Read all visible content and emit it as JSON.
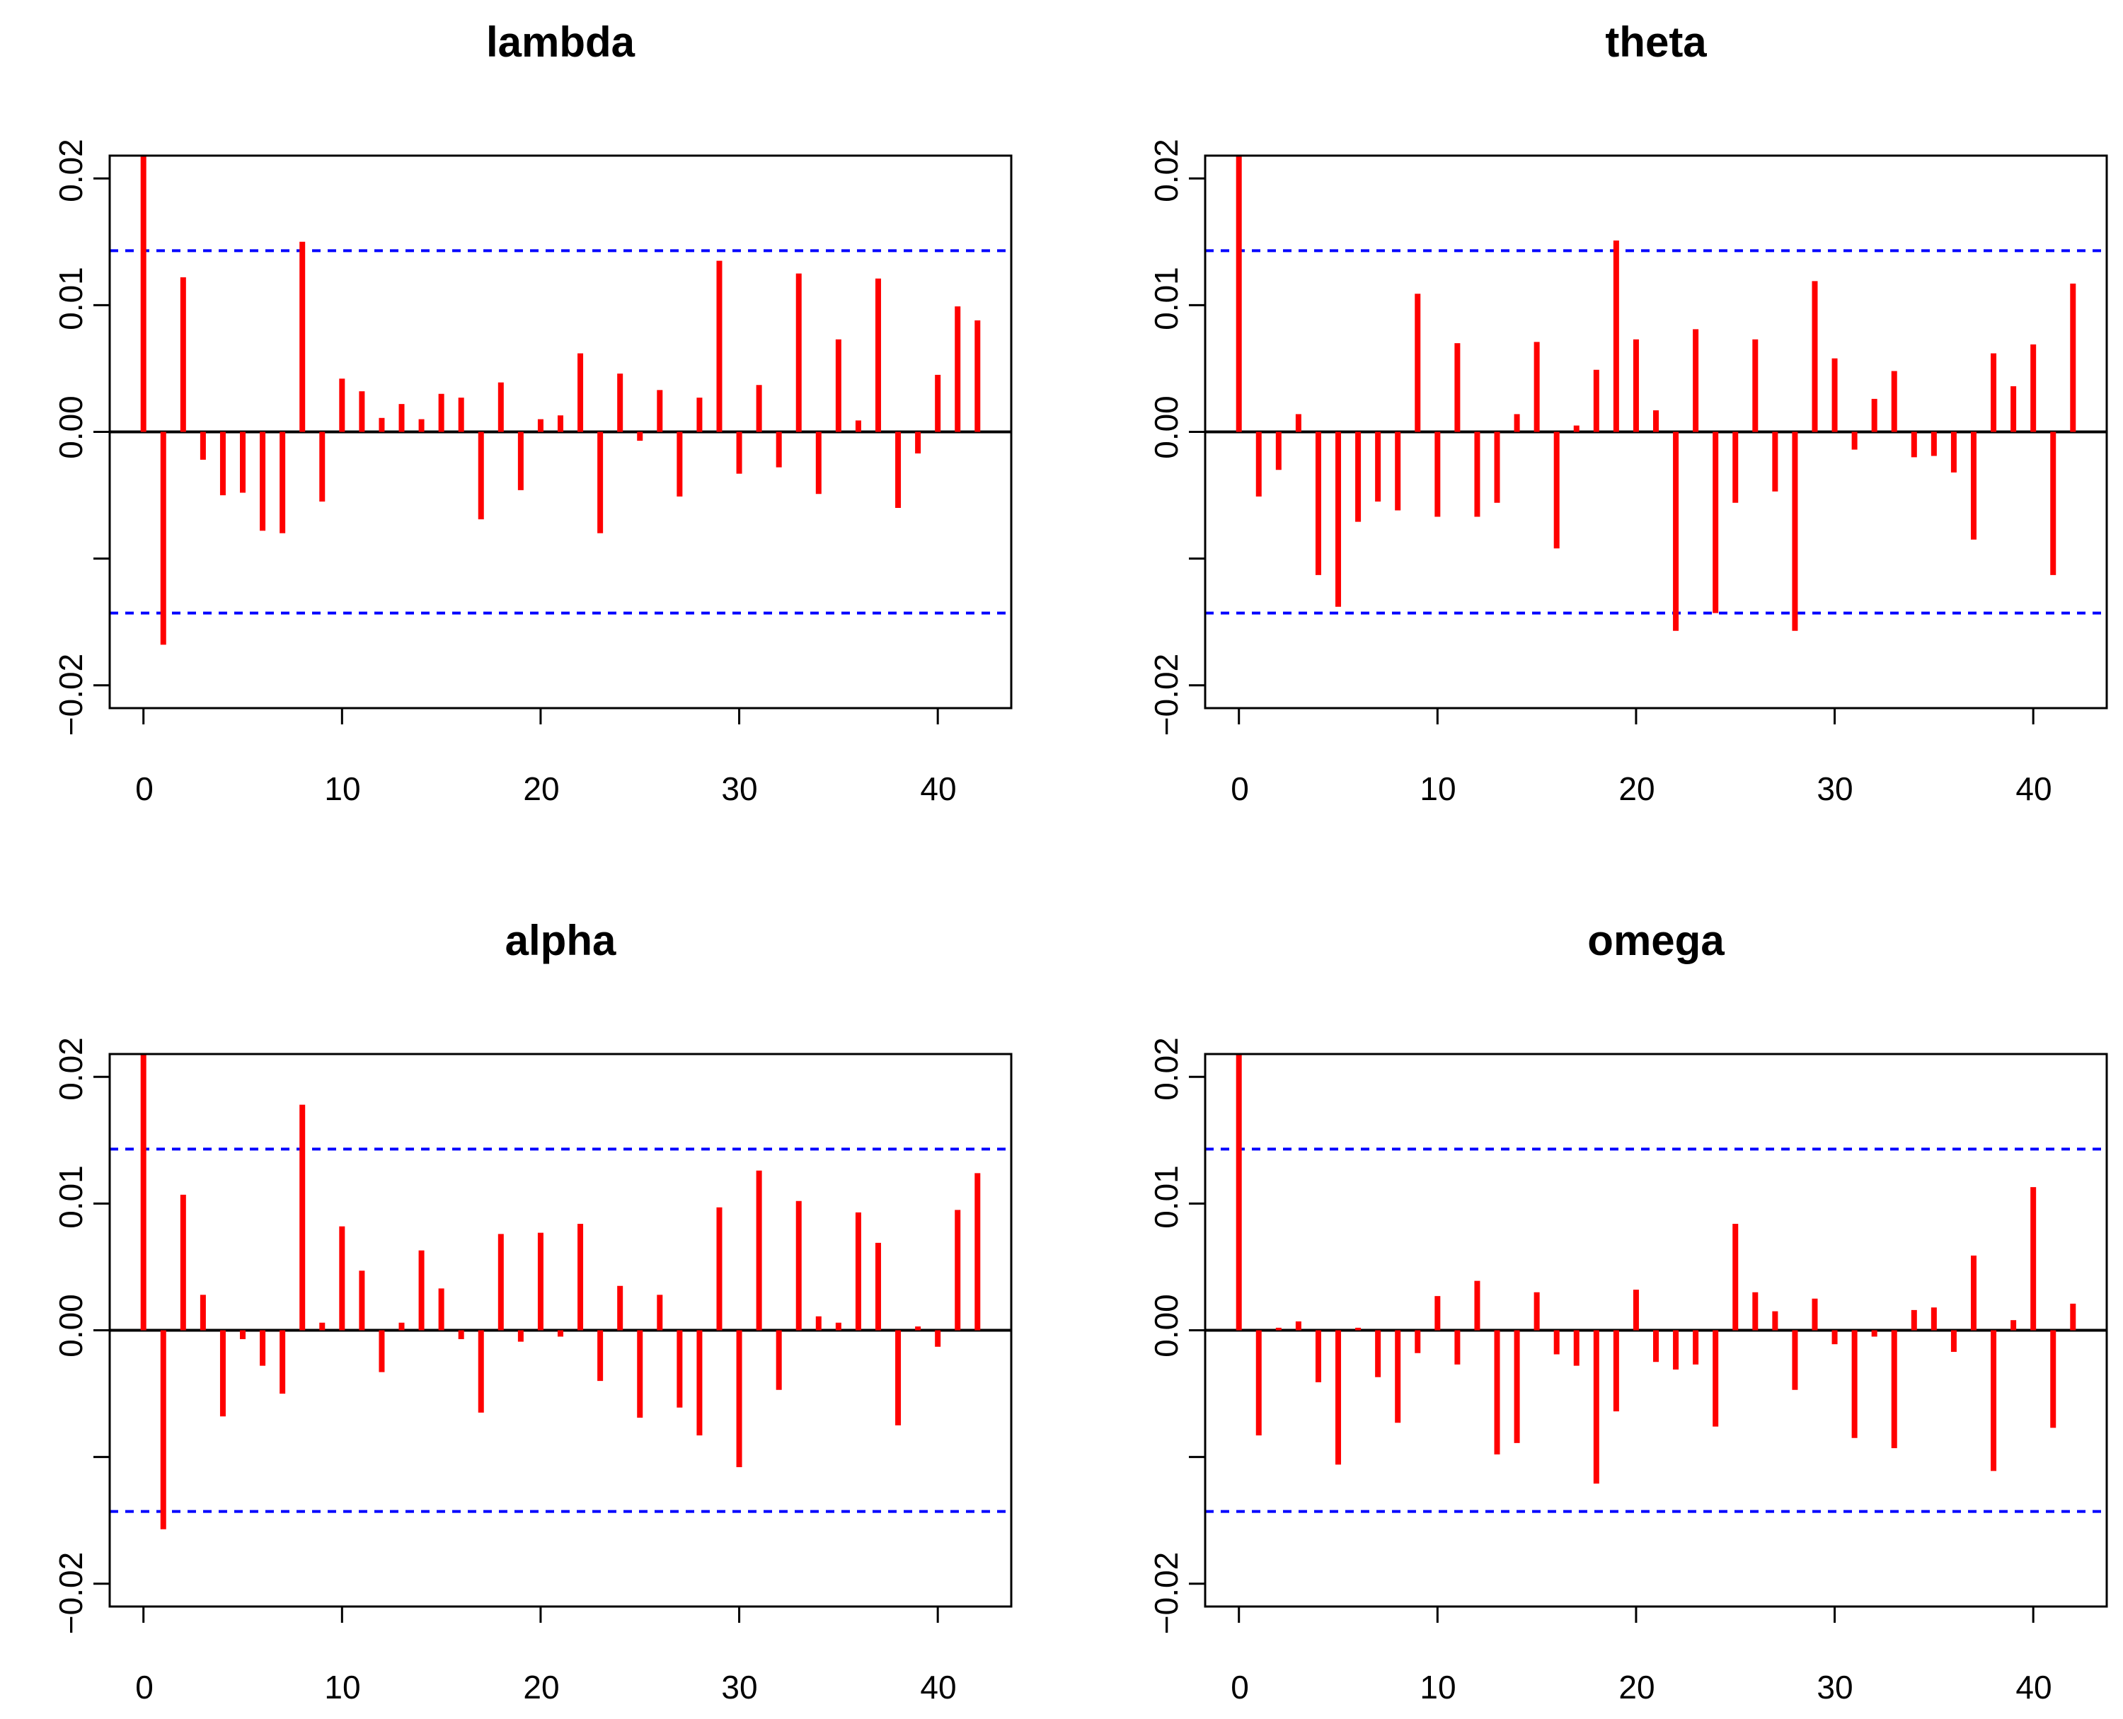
{
  "colors": {
    "spike": "#ff0000",
    "ci": "#0000ff",
    "axis": "#000000",
    "zero": "#000000"
  },
  "chart_data": [
    {
      "type": "bar",
      "title": "lambda",
      "xlabel": "",
      "ylabel": "",
      "xlim": [
        -1.7,
        43.7
      ],
      "ylim": [
        -0.0218,
        0.0218
      ],
      "xticks": [
        0,
        10,
        20,
        30,
        40
      ],
      "xtick_labels": [
        "0",
        "10",
        "20",
        "30",
        "40"
      ],
      "yticks": [
        -0.02,
        -0.01,
        0.0,
        0.01,
        0.02
      ],
      "ytick_labels": [
        "−0.02",
        "",
        "0.00",
        "0.01",
        "0.02"
      ],
      "ci": [
        0.0143,
        -0.0143
      ],
      "lags": [
        0,
        1,
        2,
        3,
        4,
        5,
        6,
        7,
        8,
        9,
        10,
        11,
        12,
        13,
        14,
        15,
        16,
        17,
        18,
        19,
        20,
        21,
        22,
        23,
        24,
        25,
        26,
        27,
        28,
        29,
        30,
        31,
        32,
        33,
        34,
        35,
        36,
        37,
        38,
        39,
        40,
        41,
        42
      ],
      "values": [
        0.0218,
        -0.0168,
        0.0122,
        -0.0022,
        -0.005,
        -0.0048,
        -0.0078,
        -0.008,
        0.015,
        -0.0055,
        0.0042,
        0.0032,
        0.0011,
        0.0022,
        0.001,
        0.003,
        0.0027,
        -0.0069,
        0.0039,
        -0.0046,
        0.001,
        0.0013,
        0.0062,
        -0.008,
        0.0046,
        -0.0007,
        0.0033,
        -0.0051,
        0.0027,
        0.0135,
        -0.0033,
        0.0037,
        -0.0028,
        0.0125,
        -0.0049,
        0.0073,
        0.0009,
        0.0121,
        -0.006,
        -0.0017,
        0.0045,
        0.0099,
        0.0088
      ]
    },
    {
      "type": "bar",
      "title": "theta",
      "xlabel": "",
      "ylabel": "",
      "xlim": [
        -1.7,
        43.7
      ],
      "ylim": [
        -0.0218,
        0.0218
      ],
      "xticks": [
        0,
        10,
        20,
        30,
        40
      ],
      "xtick_labels": [
        "0",
        "10",
        "20",
        "30",
        "40"
      ],
      "yticks": [
        -0.02,
        -0.01,
        0.0,
        0.01,
        0.02
      ],
      "ytick_labels": [
        "−0.02",
        "",
        "0.00",
        "0.01",
        "0.02"
      ],
      "ci": [
        0.0143,
        -0.0143
      ],
      "lags": [
        0,
        1,
        2,
        3,
        4,
        5,
        6,
        7,
        8,
        9,
        10,
        11,
        12,
        13,
        14,
        15,
        16,
        17,
        18,
        19,
        20,
        21,
        22,
        23,
        24,
        25,
        26,
        27,
        28,
        29,
        30,
        31,
        32,
        33,
        34,
        35,
        36,
        37,
        38,
        39,
        40,
        41,
        42
      ],
      "values": [
        0.0218,
        -0.0051,
        -0.003,
        0.0014,
        -0.0113,
        -0.0138,
        -0.0071,
        -0.0055,
        -0.0062,
        0.0109,
        -0.0067,
        0.007,
        -0.0067,
        -0.0056,
        0.0014,
        0.0071,
        -0.0092,
        0.0005,
        0.0049,
        0.0151,
        0.0073,
        0.0017,
        -0.0157,
        0.0081,
        -0.0143,
        -0.0056,
        0.0073,
        -0.0047,
        -0.0157,
        0.0119,
        0.0058,
        -0.0014,
        0.0026,
        0.0048,
        -0.002,
        -0.0019,
        -0.0032,
        -0.0085,
        0.0062,
        0.0036,
        0.0069,
        -0.0113,
        0.0117
      ]
    },
    {
      "type": "bar",
      "title": "alpha",
      "xlabel": "",
      "ylabel": "",
      "xlim": [
        -1.7,
        43.7
      ],
      "ylim": [
        -0.0218,
        0.0218
      ],
      "xticks": [
        0,
        10,
        20,
        30,
        40
      ],
      "xtick_labels": [
        "0",
        "10",
        "20",
        "30",
        "40"
      ],
      "yticks": [
        -0.02,
        -0.01,
        0.0,
        0.01,
        0.02
      ],
      "ytick_labels": [
        "−0.02",
        "",
        "0.00",
        "0.01",
        "0.02"
      ],
      "ci": [
        0.0143,
        -0.0143
      ],
      "lags": [
        0,
        1,
        2,
        3,
        4,
        5,
        6,
        7,
        8,
        9,
        10,
        11,
        12,
        13,
        14,
        15,
        16,
        17,
        18,
        19,
        20,
        21,
        22,
        23,
        24,
        25,
        26,
        27,
        28,
        29,
        30,
        31,
        32,
        33,
        34,
        35,
        36,
        37,
        38,
        39,
        40,
        41,
        42
      ],
      "values": [
        0.0218,
        -0.0157,
        0.0107,
        0.0028,
        -0.0068,
        -0.0007,
        -0.0028,
        -0.005,
        0.0178,
        0.0006,
        0.0082,
        0.0047,
        -0.0033,
        0.0006,
        0.0063,
        0.0033,
        -0.0007,
        -0.0065,
        0.0076,
        -0.0009,
        0.0077,
        -0.0005,
        0.0084,
        -0.004,
        0.0035,
        -0.0069,
        0.0028,
        -0.0061,
        -0.0083,
        0.0097,
        -0.0108,
        0.0126,
        -0.0047,
        0.0102,
        0.0011,
        0.0006,
        0.0093,
        0.0069,
        -0.0075,
        0.0003,
        -0.0013,
        0.0095,
        0.0124
      ]
    },
    {
      "type": "bar",
      "title": "omega",
      "xlabel": "",
      "ylabel": "",
      "xlim": [
        -1.7,
        43.7
      ],
      "ylim": [
        -0.0218,
        0.0218
      ],
      "xticks": [
        0,
        10,
        20,
        30,
        40
      ],
      "xtick_labels": [
        "0",
        "10",
        "20",
        "30",
        "40"
      ],
      "yticks": [
        -0.02,
        -0.01,
        0.0,
        0.01,
        0.02
      ],
      "ytick_labels": [
        "−0.02",
        "",
        "0.00",
        "0.01",
        "0.02"
      ],
      "ci": [
        0.0143,
        -0.0143
      ],
      "lags": [
        0,
        1,
        2,
        3,
        4,
        5,
        6,
        7,
        8,
        9,
        10,
        11,
        12,
        13,
        14,
        15,
        16,
        17,
        18,
        19,
        20,
        21,
        22,
        23,
        24,
        25,
        26,
        27,
        28,
        29,
        30,
        31,
        32,
        33,
        34,
        35,
        36,
        37,
        38,
        39,
        40,
        41,
        42
      ],
      "values": [
        0.0218,
        -0.0083,
        0.0002,
        0.0007,
        -0.0041,
        -0.0106,
        0.0002,
        -0.0037,
        -0.0073,
        -0.0018,
        0.0027,
        -0.0027,
        0.0039,
        -0.0098,
        -0.0089,
        0.003,
        -0.0019,
        -0.0028,
        -0.0121,
        -0.0064,
        0.0032,
        -0.0025,
        -0.0031,
        -0.0027,
        -0.0076,
        0.0084,
        0.003,
        0.0015,
        -0.0047,
        0.0025,
        -0.0011,
        -0.0085,
        -0.0005,
        -0.0093,
        0.0016,
        0.0018,
        -0.0017,
        0.0059,
        -0.0111,
        0.0008,
        0.0113,
        -0.0077,
        0.0021
      ]
    }
  ]
}
